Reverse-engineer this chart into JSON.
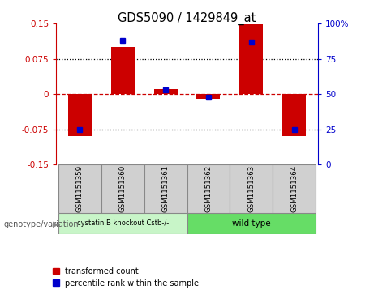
{
  "title": "GDS5090 / 1429849_at",
  "samples": [
    "GSM1151359",
    "GSM1151360",
    "GSM1151361",
    "GSM1151362",
    "GSM1151363",
    "GSM1151364"
  ],
  "red_values": [
    -0.09,
    0.1,
    0.01,
    -0.01,
    0.148,
    -0.09
  ],
  "blue_values_pct": [
    25,
    88,
    53,
    48,
    87,
    25
  ],
  "ylim_left": [
    -0.15,
    0.15
  ],
  "ylim_right": [
    0,
    100
  ],
  "yticks_left": [
    -0.15,
    -0.075,
    0,
    0.075,
    0.15
  ],
  "yticks_right": [
    0,
    25,
    50,
    75,
    100
  ],
  "ytick_labels_left": [
    "-0.15",
    "-0.075",
    "0",
    "0.075",
    "0.15"
  ],
  "ytick_labels_right": [
    "0",
    "25",
    "50",
    "75",
    "100%"
  ],
  "red_color": "#CC0000",
  "blue_color": "#0000CC",
  "legend_red": "transformed count",
  "legend_blue": "percentile rank within the sample",
  "genotype_label": "genotype/variation",
  "group1_label": "cystatin B knockout Cstb-/-",
  "group2_label": "wild type",
  "group1_color": "#c8f5c8",
  "group2_color": "#66DD66",
  "sample_box_color": "#d0d0d0",
  "dotted_line_color": "#000000",
  "zero_line_color": "#CC0000"
}
